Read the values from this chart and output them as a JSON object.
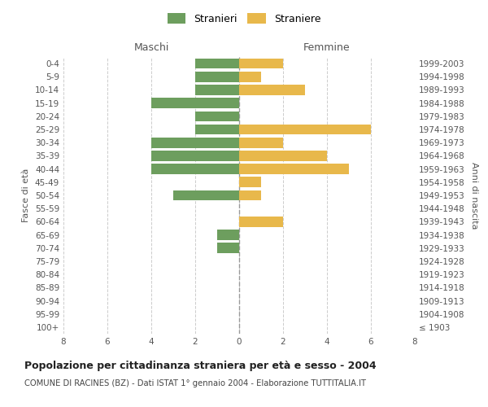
{
  "age_groups": [
    "100+",
    "95-99",
    "90-94",
    "85-89",
    "80-84",
    "75-79",
    "70-74",
    "65-69",
    "60-64",
    "55-59",
    "50-54",
    "45-49",
    "40-44",
    "35-39",
    "30-34",
    "25-29",
    "20-24",
    "15-19",
    "10-14",
    "5-9",
    "0-4"
  ],
  "birth_years": [
    "≤ 1903",
    "1904-1908",
    "1909-1913",
    "1914-1918",
    "1919-1923",
    "1924-1928",
    "1929-1933",
    "1934-1938",
    "1939-1943",
    "1944-1948",
    "1949-1953",
    "1954-1958",
    "1959-1963",
    "1964-1968",
    "1969-1973",
    "1974-1978",
    "1979-1983",
    "1984-1988",
    "1989-1993",
    "1994-1998",
    "1999-2003"
  ],
  "maschi": [
    0,
    0,
    0,
    0,
    0,
    0,
    1,
    1,
    0,
    0,
    3,
    0,
    4,
    4,
    4,
    2,
    2,
    4,
    2,
    2,
    2
  ],
  "femmine": [
    0,
    0,
    0,
    0,
    0,
    0,
    0,
    0,
    2,
    0,
    1,
    1,
    5,
    4,
    2,
    6,
    0,
    0,
    3,
    1,
    2
  ],
  "maschi_color": "#6d9e5e",
  "femmine_color": "#e8b84b",
  "grid_color": "#cccccc",
  "center_line_color": "#999999",
  "title": "Popolazione per cittadinanza straniera per età e sesso - 2004",
  "subtitle": "COMUNE DI RACINES (BZ) - Dati ISTAT 1° gennaio 2004 - Elaborazione TUTTITALIA.IT",
  "xlabel_left": "Maschi",
  "xlabel_right": "Femmine",
  "ylabel_left": "Fasce di età",
  "ylabel_right": "Anni di nascita",
  "xlim": 8,
  "legend_stranieri": "Stranieri",
  "legend_straniere": "Straniere",
  "background_color": "#ffffff",
  "tick_color": "#999999",
  "label_color": "#555555"
}
